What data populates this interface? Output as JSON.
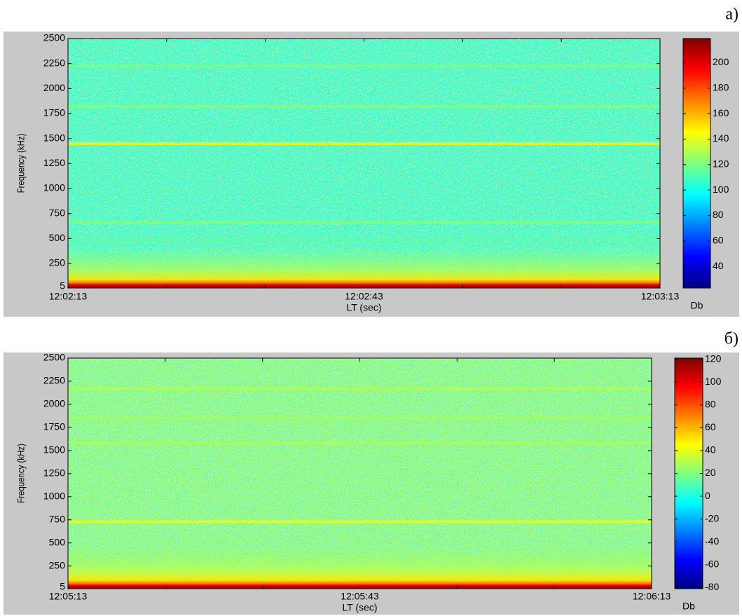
{
  "chart_data": [
    {
      "type": "heatmap",
      "panel_label": "а)",
      "xlabel": "LT (sec)",
      "ylabel": "Frequency (kHz)",
      "xlim": [
        0,
        60
      ],
      "xticks": [
        {
          "value": 0,
          "label": "12:02:13"
        },
        {
          "value": 30,
          "label": "12:02:43"
        },
        {
          "value": 60,
          "label": "12:03:13"
        }
      ],
      "xminorticks": [
        10,
        20,
        40,
        50
      ],
      "ylim": [
        5,
        2500
      ],
      "yticks": [
        5,
        250,
        500,
        750,
        1000,
        1250,
        1500,
        1750,
        2000,
        2250,
        2500
      ],
      "colorbar": {
        "label": "Db",
        "clim": [
          23,
          219
        ],
        "ticks": [
          40,
          60,
          80,
          100,
          120,
          140,
          160,
          180,
          200
        ]
      },
      "background_level": 108,
      "bands": [
        1450,
        1820,
        2225,
        660,
        490
      ],
      "band_levels": [
        148,
        122,
        120,
        122,
        116
      ]
    },
    {
      "type": "heatmap",
      "panel_label": "б)",
      "xlabel": "LT (sec)",
      "ylabel": "Frequency (kHz)",
      "xlim": [
        0,
        60
      ],
      "xticks": [
        {
          "value": 0,
          "label": "12:05:13"
        },
        {
          "value": 30,
          "label": "12:05:43"
        },
        {
          "value": 60,
          "label": "12:06:13"
        }
      ],
      "xminorticks": [
        10,
        20,
        40,
        50
      ],
      "ylim": [
        5,
        2500
      ],
      "yticks": [
        5,
        250,
        500,
        750,
        1000,
        1250,
        1500,
        1750,
        2000,
        2250,
        2500
      ],
      "colorbar": {
        "label": "Db",
        "clim": [
          -81,
          121
        ],
        "ticks": [
          -80,
          -60,
          -40,
          -20,
          0,
          20,
          40,
          60,
          80,
          100,
          120
        ]
      },
      "background_level": 22,
      "bands": [
        730,
        2170,
        1580,
        1850
      ],
      "band_levels": [
        42,
        30,
        29,
        27
      ]
    }
  ]
}
